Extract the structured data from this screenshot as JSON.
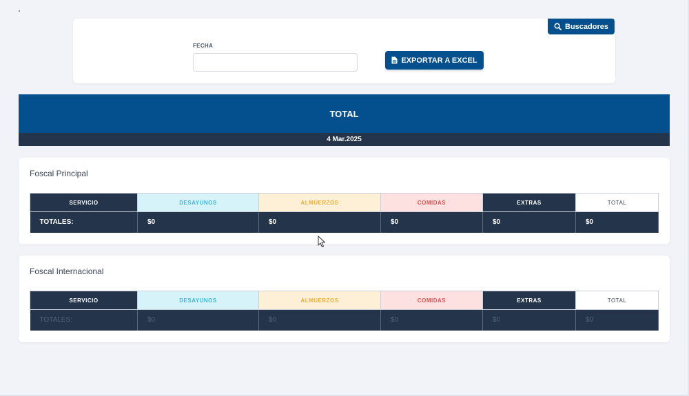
{
  "filter": {
    "search_tab_label": "Buscadores",
    "fecha_label": "FECHA",
    "fecha_value": "",
    "export_label": "EXPORTAR A EXCEL"
  },
  "summary": {
    "title": "TOTAL",
    "date": "4 Mar.2025"
  },
  "columns": [
    "SERVICIO",
    "DESAYUNOS",
    "ALMUERZOS",
    "COMIDAS",
    "EXTRAS",
    "TOTAL"
  ],
  "locations": [
    {
      "name": "Foscal Principal",
      "row": [
        "TOTALES:",
        "$0",
        "$0",
        "$0",
        "$0",
        "$0"
      ]
    },
    {
      "name": "Foscal Internacional",
      "row": [
        "TOTALES:",
        "$0",
        "$0",
        "$0",
        "$0",
        "$0"
      ]
    }
  ],
  "colors": {
    "primary": "#04508f",
    "dark": "#24344a",
    "desayunos": "#3fb8d8",
    "almuerzos": "#f2ae3b",
    "comidas": "#e25252"
  },
  "icons": {
    "search": "search-icon",
    "export": "file-icon",
    "cursor": "mouse-cursor-icon"
  }
}
